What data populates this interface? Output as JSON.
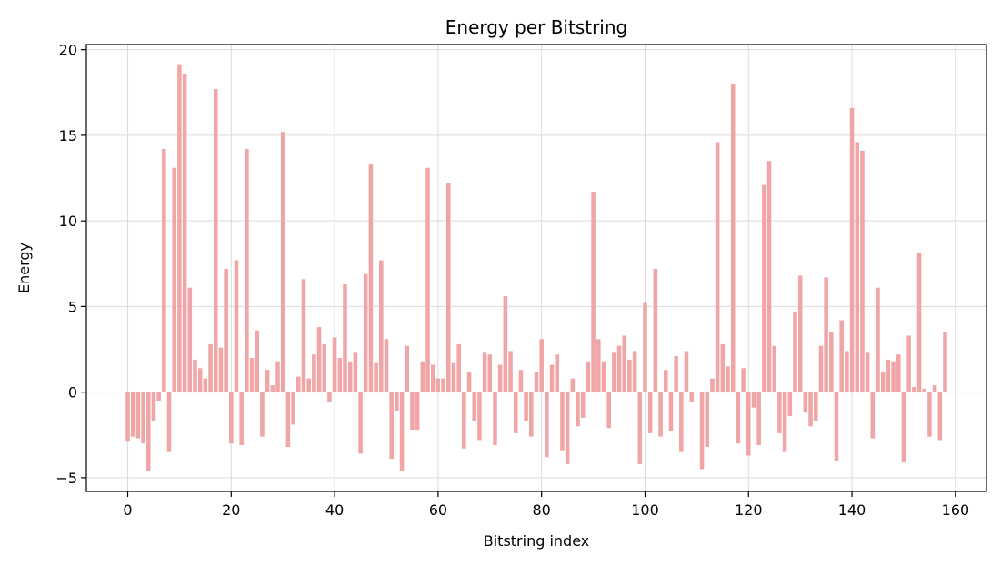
{
  "chart_data": {
    "type": "bar",
    "title": "Energy per Bitstring",
    "xlabel": "Bitstring index",
    "ylabel": "Energy",
    "xlim": [
      -8,
      166
    ],
    "ylim": [
      -5.8,
      20.3
    ],
    "xticks": [
      0,
      20,
      40,
      60,
      80,
      100,
      120,
      140,
      160
    ],
    "yticks": [
      -5,
      0,
      5,
      10,
      15,
      20
    ],
    "grid": true,
    "bar_color": "#f0a6a6",
    "x": [
      0,
      1,
      2,
      3,
      4,
      5,
      6,
      7,
      8,
      9,
      10,
      11,
      12,
      13,
      14,
      15,
      16,
      17,
      18,
      19,
      20,
      21,
      22,
      23,
      24,
      25,
      26,
      27,
      28,
      29,
      30,
      31,
      32,
      33,
      34,
      35,
      36,
      37,
      38,
      39,
      40,
      41,
      42,
      43,
      44,
      45,
      46,
      47,
      48,
      49,
      50,
      51,
      52,
      53,
      54,
      55,
      56,
      57,
      58,
      59,
      60,
      61,
      62,
      63,
      64,
      65,
      66,
      67,
      68,
      69,
      70,
      71,
      72,
      73,
      74,
      75,
      76,
      77,
      78,
      79,
      80,
      81,
      82,
      83,
      84,
      85,
      86,
      87,
      88,
      89,
      90,
      91,
      92,
      93,
      94,
      95,
      96,
      97,
      98,
      99,
      100,
      101,
      102,
      103,
      104,
      105,
      106,
      107,
      108,
      109,
      110,
      111,
      112,
      113,
      114,
      115,
      116,
      117,
      118,
      119,
      120,
      121,
      122,
      123,
      124,
      125,
      126,
      127,
      128,
      129,
      130,
      131,
      132,
      133,
      134,
      135,
      136,
      137,
      138,
      139,
      140,
      141,
      142,
      143,
      144,
      145,
      146,
      147,
      148,
      149,
      150,
      151,
      152,
      153,
      154,
      155,
      156,
      157,
      158
    ],
    "values": [
      -2.9,
      -2.6,
      -2.7,
      -3.0,
      -4.6,
      -1.7,
      -0.5,
      14.2,
      -3.5,
      13.1,
      19.1,
      18.6,
      6.1,
      1.9,
      1.4,
      0.8,
      2.8,
      17.7,
      2.6,
      7.2,
      -3.0,
      7.7,
      -3.1,
      14.2,
      2.0,
      3.6,
      -2.6,
      1.3,
      0.4,
      1.8,
      15.2,
      -3.2,
      -1.9,
      0.9,
      6.6,
      0.8,
      2.2,
      3.8,
      2.8,
      -0.6,
      3.2,
      2.0,
      6.3,
      1.8,
      2.3,
      -3.6,
      6.9,
      13.3,
      1.7,
      7.7,
      3.1,
      -3.9,
      -1.1,
      -4.6,
      2.7,
      -2.2,
      -2.2,
      1.8,
      13.1,
      1.6,
      0.8,
      0.8,
      12.2,
      1.7,
      2.8,
      -3.3,
      1.2,
      -1.7,
      -2.8,
      2.3,
      2.2,
      -3.1,
      1.6,
      5.6,
      2.4,
      -2.4,
      1.3,
      -1.7,
      -2.6,
      1.2,
      3.1,
      -3.8,
      1.6,
      2.2,
      -3.4,
      -4.2,
      0.8,
      -2.0,
      -1.5,
      1.8,
      11.7,
      3.1,
      1.8,
      -2.1,
      2.3,
      2.7,
      3.3,
      1.9,
      2.4,
      -4.2,
      5.2,
      -2.4,
      7.2,
      -2.6,
      1.3,
      -2.3,
      2.1,
      -3.5,
      2.4,
      -0.6,
      0.0,
      -4.5,
      -3.2,
      0.8,
      14.6,
      2.8,
      1.5,
      18.0,
      -3.0,
      1.4,
      -3.7,
      -0.9,
      -3.1,
      12.1,
      13.5,
      2.7,
      -2.4,
      -3.5,
      -1.4,
      4.7,
      6.8,
      -1.2,
      -2.0,
      -1.7,
      2.7,
      6.7,
      3.5,
      -4.0,
      4.2,
      2.4,
      16.6,
      14.6,
      14.1,
      2.3,
      -2.7,
      6.1,
      1.2,
      1.9,
      1.8,
      2.2,
      -4.1,
      3.3,
      0.3,
      8.1,
      0.2,
      -2.6,
      0.4,
      -2.8,
      3.5
    ]
  }
}
